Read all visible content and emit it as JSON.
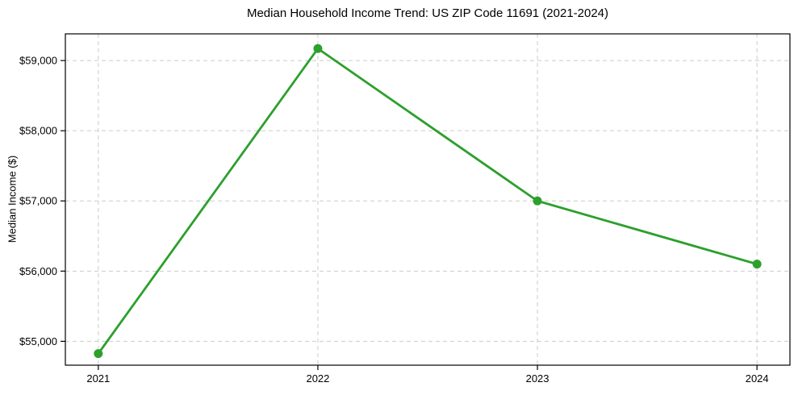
{
  "chart_data": {
    "type": "line",
    "title": "Median Household Income Trend: US ZIP Code 11691 (2021-2024)",
    "xlabel": "",
    "ylabel": "Median Income ($)",
    "x": [
      2021,
      2022,
      2023,
      2024
    ],
    "series": [
      {
        "name": "Median Household Income",
        "values": [
          54825,
          59170,
          57000,
          56100
        ]
      }
    ],
    "xticks": [
      2021,
      2022,
      2023,
      2024
    ],
    "xtick_labels": [
      "2021",
      "2022",
      "2023",
      "2024"
    ],
    "yticks": [
      55000,
      56000,
      57000,
      58000,
      59000
    ],
    "ytick_labels": [
      "$55,000",
      "$56,000",
      "$57,000",
      "$58,000",
      "$59,000"
    ],
    "xlim": [
      2020.85,
      2024.15
    ],
    "ylim": [
      54660,
      59380
    ],
    "grid": true,
    "legend_position": "none",
    "colors": {
      "line": "#2ca02c",
      "marker": "#2ca02c",
      "grid": "#cccccc",
      "spine": "#000000",
      "text": "#000000",
      "background": "#ffffff"
    }
  }
}
